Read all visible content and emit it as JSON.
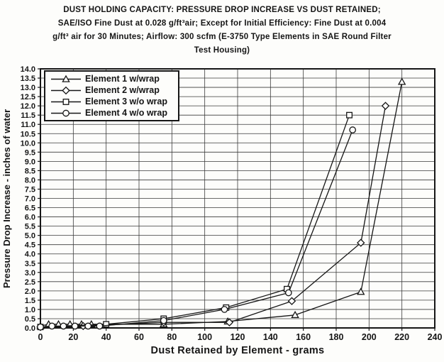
{
  "title": {
    "lines": [
      "DUST HOLDING CAPACITY: PRESSURE DROP INCREASE VS DUST RETAINED;",
      "SAE/ISO Fine Dust at 0.028 g/ft³air; Except for Initial Efficiency: Fine Dust at 0.004",
      "g/ft³ air for 30 Minutes; Airflow: 300 scfm (E-3750 Type Elements in SAE Round Filter",
      "Test Housing)"
    ]
  },
  "chart_data": {
    "type": "line",
    "title": "DUST HOLDING CAPACITY: PRESSURE DROP INCREASE VS DUST RETAINED",
    "xlabel": "Dust Retained by Element - grams",
    "ylabel": "Pressure Drop Increase - inches of water",
    "xlim": [
      0,
      240
    ],
    "x_tick_step": 20,
    "ylim": [
      0,
      14
    ],
    "y_tick_step": 0.5,
    "grid": true,
    "legend_position": "top-left",
    "colors": {
      "line": "#161616",
      "background": "#fdfdfb",
      "text": "#151515"
    },
    "series": [
      {
        "name": "Element 1 w/wrap",
        "marker": "triangle",
        "points": [
          [
            0,
            0.1
          ],
          [
            5,
            0.2
          ],
          [
            11,
            0.2
          ],
          [
            18,
            0.2
          ],
          [
            25,
            0.2
          ],
          [
            31,
            0.2
          ],
          [
            75,
            0.2
          ],
          [
            114,
            0.35
          ],
          [
            155,
            0.7
          ],
          [
            195,
            1.95
          ],
          [
            220,
            13.3
          ]
        ]
      },
      {
        "name": "Element 2 w/wrap",
        "marker": "diamond",
        "points": [
          [
            0,
            0.05
          ],
          [
            26,
            0.1
          ],
          [
            75,
            0.3
          ],
          [
            115,
            0.3
          ],
          [
            153,
            1.45
          ],
          [
            195,
            4.6
          ],
          [
            210,
            12.0
          ]
        ]
      },
      {
        "name": "Element 3 w/o wrap",
        "marker": "square",
        "points": [
          [
            0,
            0.05
          ],
          [
            40,
            0.2
          ],
          [
            75,
            0.5
          ],
          [
            113,
            1.1
          ],
          [
            150,
            2.1
          ],
          [
            188,
            11.5
          ]
        ]
      },
      {
        "name": "Element 4 w/o wrap",
        "marker": "circle",
        "points": [
          [
            0,
            0.05
          ],
          [
            7,
            0.1
          ],
          [
            14,
            0.1
          ],
          [
            21,
            0.1
          ],
          [
            29,
            0.1
          ],
          [
            36,
            0.1
          ],
          [
            75,
            0.4
          ],
          [
            112,
            1.0
          ],
          [
            151,
            1.9
          ],
          [
            190,
            10.7
          ]
        ]
      }
    ]
  }
}
